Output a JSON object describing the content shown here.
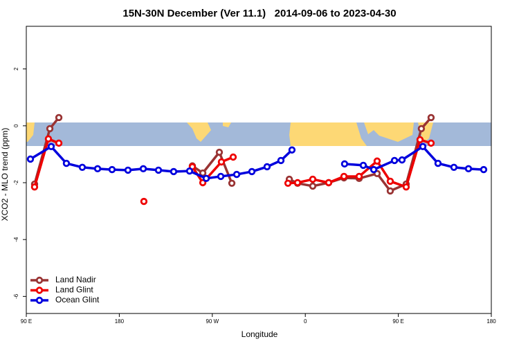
{
  "chart_data": {
    "type": "line",
    "title": "15N-30N December (Ver 11.1)   2014-09-06 to 2023-04-30",
    "x_label": "Longitude",
    "y_label": "XCO2 - MLO trend (ppm)",
    "xlim": [
      90,
      540
    ],
    "ylim": [
      -6.6,
      3.5
    ],
    "xticks": [
      {
        "value": 90,
        "label": "90 E"
      },
      {
        "value": 180,
        "label": "180"
      },
      {
        "value": 270,
        "label": "90 W"
      },
      {
        "value": 360,
        "label": "0"
      },
      {
        "value": 450,
        "label": "90 E"
      },
      {
        "value": 540,
        "label": "180"
      }
    ],
    "yticks": [
      2,
      0,
      -2,
      -4,
      -6
    ],
    "legend": "bottom-left",
    "series": [
      {
        "name": "Land Nadir",
        "color": "#993333",
        "x": [
          98.0,
          112.8,
          121.5,
          null,
          250.7,
          260.8,
          276.8,
          288.9,
          null,
          344.5,
          352.5,
          367.2,
          382.6,
          397.4,
          412.1,
          429.5,
          442.2,
          457.6,
          472.3,
          481.7
        ],
        "values": [
          -2.05,
          -0.1,
          0.29,
          null,
          -1.41,
          -1.66,
          -0.93,
          -2.02,
          null,
          -1.88,
          -2.02,
          -2.12,
          -2.0,
          -1.83,
          -1.85,
          -1.68,
          -2.29,
          -2.05,
          -0.1,
          0.29
        ]
      },
      {
        "name": "Land Glint",
        "color": "#ee0000",
        "x": [
          98.0,
          111.4,
          121.5,
          null,
          203.8,
          null,
          250.7,
          260.8,
          278.8,
          290.2,
          null,
          343.2,
          352.5,
          367.2,
          382.6,
          397.4,
          412.1,
          429.5,
          442.2,
          457.6,
          471.0,
          481.7
        ],
        "values": [
          -2.15,
          -0.46,
          -0.61,
          null,
          -2.66,
          null,
          -1.44,
          -2.0,
          -1.27,
          -1.1,
          null,
          -2.02,
          -2.0,
          -1.88,
          -2.0,
          -1.78,
          -1.78,
          -1.24,
          -1.95,
          -2.15,
          -0.49,
          -0.61
        ]
      },
      {
        "name": "Ocean Glint",
        "color": "#0000dd",
        "x": [
          94.0,
          114.1,
          128.8,
          144.2,
          159.0,
          173.0,
          188.4,
          203.2,
          217.9,
          232.6,
          248.0,
          264.1,
          278.2,
          293.6,
          308.3,
          323.0,
          336.4,
          347.1,
          null,
          398.0,
          416.1,
          426.2,
          446.3,
          453.6,
          473.7,
          488.4,
          503.8,
          517.9,
          532.6
        ],
        "values": [
          -1.17,
          -0.73,
          -1.32,
          -1.46,
          -1.51,
          -1.54,
          -1.56,
          -1.51,
          -1.56,
          -1.61,
          -1.59,
          -1.85,
          -1.78,
          -1.71,
          -1.61,
          -1.44,
          -1.22,
          -0.85,
          null,
          -1.34,
          -1.39,
          -1.54,
          -1.22,
          -1.2,
          -0.73,
          -1.32,
          -1.46,
          -1.51,
          -1.54
        ]
      }
    ]
  }
}
